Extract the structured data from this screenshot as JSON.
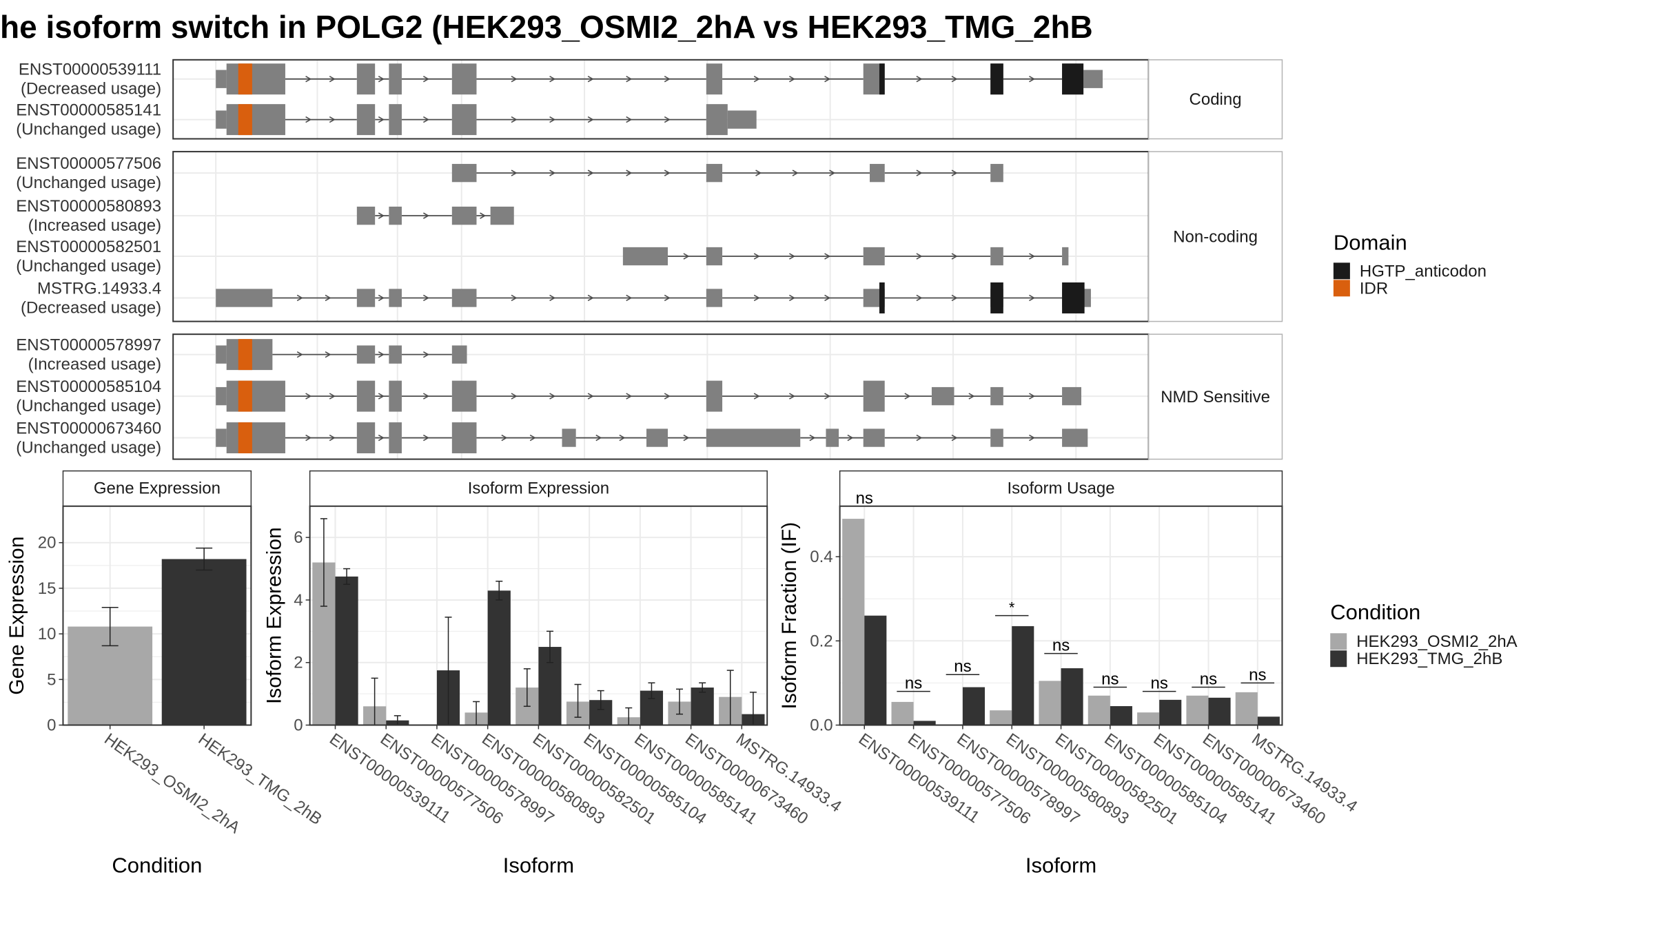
{
  "title": "he isoform switch in POLG2 (HEK293_OSMI2_2hA vs HEK293_TMG_2hB",
  "domain_legend": {
    "title": "Domain",
    "items": [
      {
        "label": "HGTP_anticodon",
        "color": "#1a1a1a"
      },
      {
        "label": "IDR",
        "color": "#d95f0e"
      }
    ]
  },
  "condition_legend": {
    "title": "Condition",
    "items": [
      {
        "label": "HEK293_OSMI2_2hA",
        "color": "#a8a8a8"
      },
      {
        "label": "HEK293_TMG_2hB",
        "color": "#333333"
      }
    ]
  },
  "colors": {
    "exon": "#808080",
    "intron": "#4d4d4d",
    "hgtp": "#1a1a1a",
    "idr": "#d95f0e",
    "grid": "#ebebeb",
    "border": "#333333",
    "strip_border": "#b3b3b3"
  },
  "chart_data": [
    {
      "type": "gene-structure",
      "panels": [
        {
          "label": "Coding",
          "transcripts": [
            {
              "id": "ENST00000539111",
              "status": "(Decreased usage)",
              "exons": [
                [
                  202,
                  267
                ],
                [
                  334,
                  351
                ],
                [
                  364,
                  376
                ],
                [
                  423,
                  446
                ],
                [
                  661,
                  676
                ],
                [
                  808,
                  828
                ],
                [
                  927,
                  939
                ],
                [
                  994,
                  1032
                ]
              ],
              "thin": [
                [
                  202,
                  212
                ],
                [
                  1014,
                  1032
                ]
              ],
              "domains": [
                {
                  "type": "idr",
                  "range": [
                    223,
                    236
                  ]
                },
                {
                  "type": "hgtp",
                  "range": [
                    823,
                    828
                  ]
                },
                {
                  "type": "hgtp",
                  "range": [
                    927,
                    939
                  ]
                },
                {
                  "type": "hgtp",
                  "range": [
                    994,
                    1014
                  ]
                }
              ]
            },
            {
              "id": "ENST00000585141",
              "status": "(Unchanged usage)",
              "exons": [
                [
                  202,
                  267
                ],
                [
                  334,
                  351
                ],
                [
                  364,
                  376
                ],
                [
                  423,
                  446
                ],
                [
                  661,
                  708
                ]
              ],
              "thin": [
                [
                  202,
                  212
                ],
                [
                  681,
                  708
                ]
              ],
              "domains": [
                {
                  "type": "idr",
                  "range": [
                    223,
                    236
                  ]
                }
              ]
            }
          ]
        },
        {
          "label": "Non-coding",
          "transcripts": [
            {
              "id": "ENST00000577506",
              "status": "(Unchanged usage)",
              "exons": [
                [
                  423,
                  446
                ],
                [
                  661,
                  676
                ],
                [
                  814,
                  828
                ],
                [
                  927,
                  939
                ]
              ],
              "thin": [
                [
                  423,
                  446
                ],
                [
                  661,
                  676
                ],
                [
                  814,
                  828
                ],
                [
                  927,
                  939
                ]
              ],
              "domains": []
            },
            {
              "id": "ENST00000580893",
              "status": "(Increased usage)",
              "exons": [
                [
                  334,
                  351
                ],
                [
                  364,
                  376
                ],
                [
                  423,
                  446
                ],
                [
                  459,
                  481
                ]
              ],
              "thin": [
                [
                  334,
                  351
                ],
                [
                  364,
                  376
                ],
                [
                  423,
                  446
                ],
                [
                  459,
                  481
                ]
              ],
              "domains": []
            },
            {
              "id": "ENST00000582501",
              "status": "(Unchanged usage)",
              "exons": [
                [
                  583,
                  625
                ],
                [
                  661,
                  676
                ],
                [
                  808,
                  828
                ],
                [
                  927,
                  939
                ],
                [
                  994,
                  1000
                ]
              ],
              "thin": [
                [
                  583,
                  625
                ],
                [
                  661,
                  676
                ],
                [
                  808,
                  828
                ],
                [
                  927,
                  939
                ],
                [
                  994,
                  1000
                ]
              ],
              "domains": []
            },
            {
              "id": "MSTRG.14933.4",
              "status": "(Decreased usage)",
              "exons": [
                [
                  202,
                  255
                ],
                [
                  334,
                  351
                ],
                [
                  364,
                  376
                ],
                [
                  423,
                  446
                ],
                [
                  661,
                  676
                ],
                [
                  808,
                  828
                ],
                [
                  927,
                  939
                ],
                [
                  994,
                  1021
                ]
              ],
              "thin": [
                [
                  202,
                  255
                ],
                [
                  334,
                  351
                ],
                [
                  364,
                  376
                ],
                [
                  423,
                  446
                ],
                [
                  661,
                  676
                ],
                [
                  808,
                  828
                ],
                [
                  927,
                  939
                ],
                [
                  994,
                  1021
                ]
              ],
              "domains": [
                {
                  "type": "hgtp",
                  "range": [
                    823,
                    828
                  ]
                },
                {
                  "type": "hgtp",
                  "range": [
                    927,
                    939
                  ]
                },
                {
                  "type": "hgtp",
                  "range": [
                    994,
                    1015
                  ]
                }
              ]
            }
          ]
        },
        {
          "label": "NMD Sensitive",
          "transcripts": [
            {
              "id": "ENST00000578997",
              "status": "(Increased usage)",
              "exons": [
                [
                  202,
                  255
                ],
                [
                  334,
                  351
                ],
                [
                  364,
                  376
                ],
                [
                  423,
                  437
                ]
              ],
              "thin": [
                [
                  202,
                  212
                ],
                [
                  334,
                  351
                ],
                [
                  364,
                  376
                ],
                [
                  423,
                  437
                ]
              ],
              "domains": [
                {
                  "type": "idr",
                  "range": [
                    223,
                    236
                  ]
                }
              ]
            },
            {
              "id": "ENST00000585104",
              "status": "(Unchanged usage)",
              "exons": [
                [
                  202,
                  267
                ],
                [
                  334,
                  351
                ],
                [
                  364,
                  376
                ],
                [
                  423,
                  446
                ],
                [
                  661,
                  676
                ],
                [
                  808,
                  828
                ],
                [
                  872,
                  893
                ],
                [
                  927,
                  939
                ],
                [
                  994,
                  1012
                ]
              ],
              "thin": [
                [
                  202,
                  212
                ],
                [
                  872,
                  893
                ],
                [
                  927,
                  939
                ],
                [
                  994,
                  1012
                ]
              ],
              "domains": [
                {
                  "type": "idr",
                  "range": [
                    223,
                    236
                  ]
                }
              ]
            },
            {
              "id": "ENST00000673460",
              "status": "(Unchanged usage)",
              "exons": [
                [
                  202,
                  267
                ],
                [
                  334,
                  351
                ],
                [
                  364,
                  376
                ],
                [
                  423,
                  446
                ],
                [
                  526,
                  539
                ],
                [
                  605,
                  625
                ],
                [
                  661,
                  749
                ],
                [
                  773,
                  785
                ],
                [
                  808,
                  828
                ],
                [
                  927,
                  939
                ],
                [
                  994,
                  1018
                ]
              ],
              "thin": [
                [
                  202,
                  212
                ],
                [
                  526,
                  539
                ],
                [
                  605,
                  625
                ],
                [
                  661,
                  749
                ],
                [
                  773,
                  785
                ],
                [
                  808,
                  828
                ],
                [
                  927,
                  939
                ],
                [
                  994,
                  1018
                ]
              ],
              "domains": [
                {
                  "type": "idr",
                  "range": [
                    223,
                    236
                  ]
                }
              ]
            }
          ]
        }
      ]
    },
    {
      "type": "bar",
      "title": "Gene Expression",
      "xlabel": "Condition",
      "ylabel": "Gene Expression",
      "ylim": [
        0,
        24
      ],
      "yticks": [
        0,
        5,
        10,
        15,
        20
      ],
      "categories": [
        "HEK293_OSMI2_2hA",
        "HEK293_TMG_2hB"
      ],
      "values": [
        10.8,
        18.2
      ],
      "errors": [
        [
          8.7,
          12.9
        ],
        [
          17.0,
          19.4
        ]
      ]
    },
    {
      "type": "bar",
      "title": "Isoform Expression",
      "xlabel": "Isoform",
      "ylabel": "Isoform Expression",
      "ylim": [
        0,
        7
      ],
      "yticks": [
        0,
        2,
        4,
        6
      ],
      "categories": [
        "ENST00000539111",
        "ENST00000577506",
        "ENST00000578997",
        "ENST00000580893",
        "ENST00000582501",
        "ENST00000585104",
        "ENST00000585141",
        "ENST00000673460",
        "MSTRG.14933.4"
      ],
      "series": [
        {
          "name": "HEK293_OSMI2_2hA",
          "values": [
            5.2,
            0.6,
            0.0,
            0.4,
            1.2,
            0.75,
            0.25,
            0.75,
            0.9
          ],
          "errors": [
            [
              3.8,
              6.6
            ],
            [
              0.0,
              1.5
            ],
            [
              0.0,
              0.0
            ],
            [
              0.0,
              0.75
            ],
            [
              0.6,
              1.8
            ],
            [
              0.25,
              1.3
            ],
            [
              0.0,
              0.55
            ],
            [
              0.35,
              1.15
            ],
            [
              0.0,
              1.75
            ]
          ]
        },
        {
          "name": "HEK293_TMG_2hB",
          "values": [
            4.75,
            0.15,
            1.75,
            4.3,
            2.5,
            0.8,
            1.1,
            1.2,
            0.35
          ],
          "errors": [
            [
              4.5,
              5.0
            ],
            [
              0.0,
              0.3
            ],
            [
              0.0,
              3.45
            ],
            [
              4.0,
              4.6
            ],
            [
              2.0,
              3.0
            ],
            [
              0.5,
              1.1
            ],
            [
              0.85,
              1.35
            ],
            [
              1.05,
              1.35
            ],
            [
              0.0,
              1.05
            ]
          ]
        }
      ]
    },
    {
      "type": "bar",
      "title": "Isoform Usage",
      "xlabel": "Isoform",
      "ylabel": "Isoform Fraction (IF)",
      "ylim": [
        0,
        0.52
      ],
      "yticks": [
        0.0,
        0.2,
        0.4
      ],
      "categories": [
        "ENST00000539111",
        "ENST00000577506",
        "ENST00000578997",
        "ENST00000580893",
        "ENST00000582501",
        "ENST00000585104",
        "ENST00000585141",
        "ENST00000673460",
        "MSTRG.14933.4"
      ],
      "series": [
        {
          "name": "HEK293_OSMI2_2hA",
          "values": [
            0.49,
            0.055,
            0.0,
            0.035,
            0.105,
            0.07,
            0.03,
            0.07,
            0.078
          ]
        },
        {
          "name": "HEK293_TMG_2hB",
          "values": [
            0.26,
            0.01,
            0.09,
            0.235,
            0.135,
            0.045,
            0.06,
            0.065,
            0.02
          ]
        }
      ],
      "significance": [
        {
          "label": "ns",
          "y": 0.52
        },
        {
          "label": "ns",
          "y": 0.08
        },
        {
          "label": "ns",
          "y": 0.12
        },
        {
          "label": "*",
          "y": 0.26
        },
        {
          "label": "ns",
          "y": 0.17
        },
        {
          "label": "ns",
          "y": 0.09
        },
        {
          "label": "ns",
          "y": 0.08
        },
        {
          "label": "ns",
          "y": 0.09
        },
        {
          "label": "ns",
          "y": 0.1
        }
      ]
    }
  ]
}
